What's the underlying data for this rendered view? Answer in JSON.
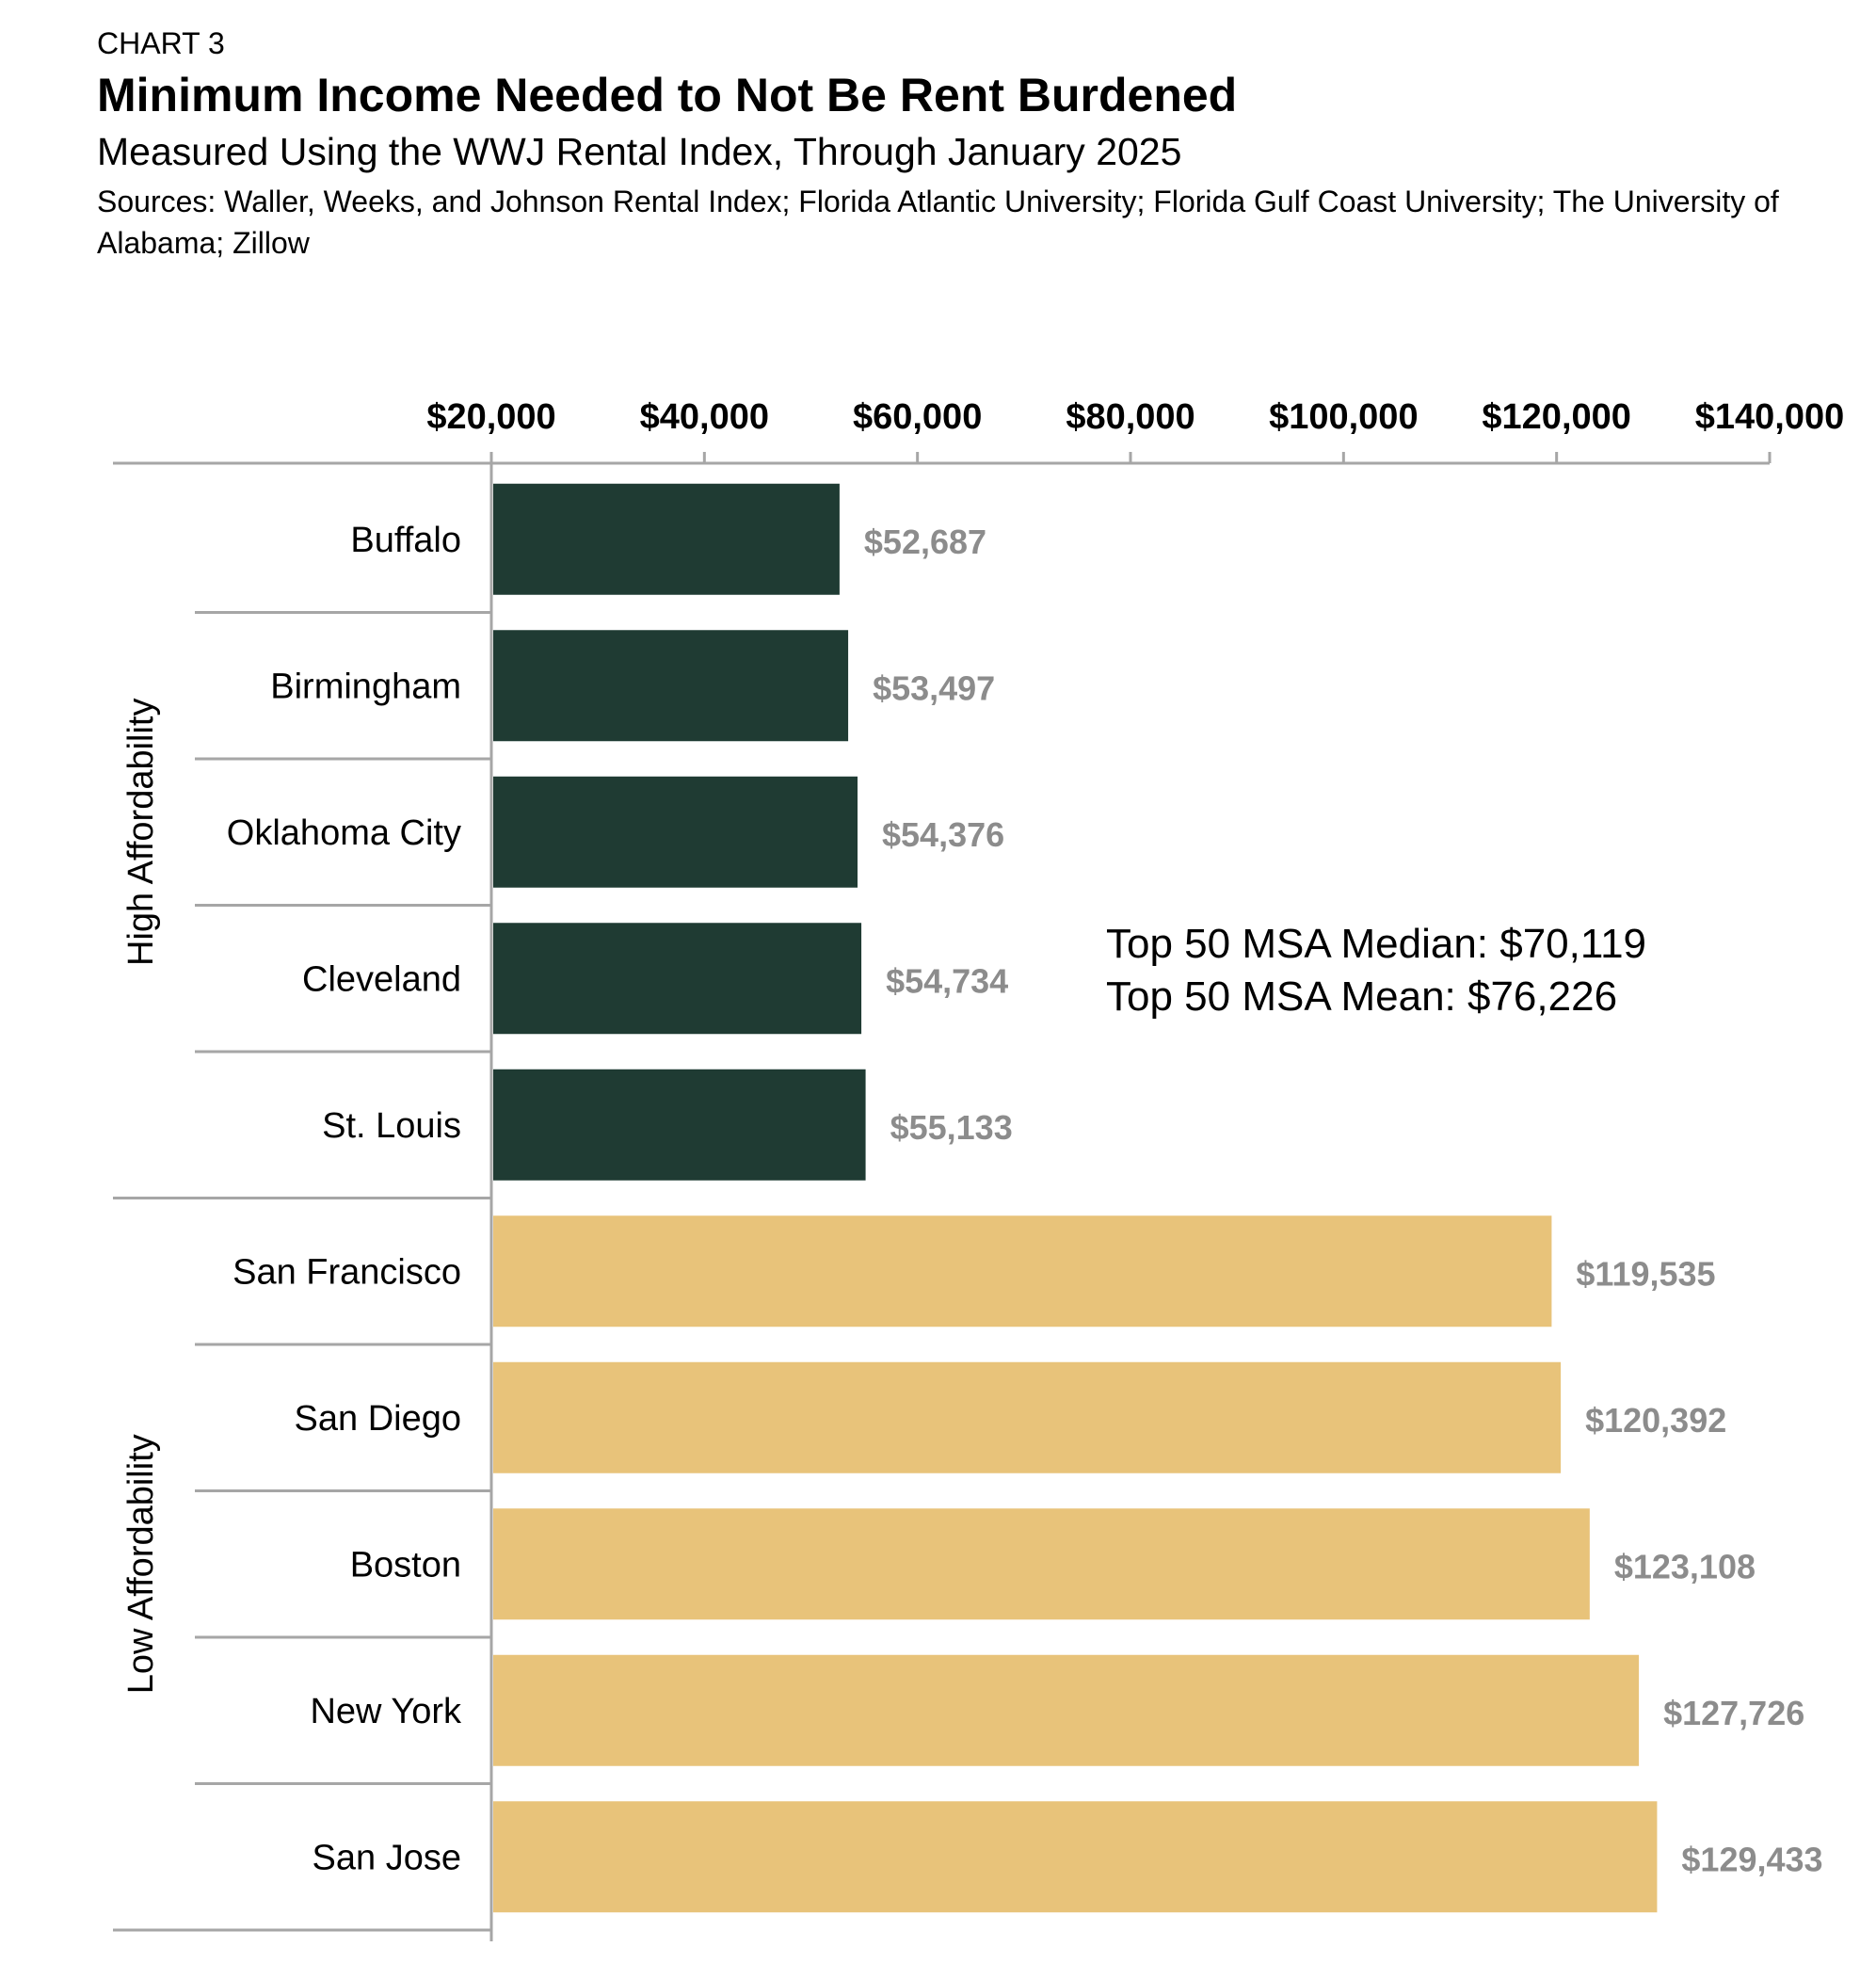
{
  "header": {
    "chart_label": "CHART 3",
    "title": "Minimum Income Needed to Not Be Rent Burdened",
    "subtitle": "Measured Using the WWJ Rental Index, Through January 2025",
    "sources": "Sources: Waller, Weeks, and Johnson Rental Index; Florida Atlantic University; Florida Gulf Coast University; The University of Alabama; Zillow"
  },
  "annotations": {
    "median": "Top 50 MSA Median: $70,119",
    "mean": "Top 50 MSA Mean: $76,226"
  },
  "colors": {
    "high_affordability": "#1f3b33",
    "low_affordability": "#e8c37a",
    "axis": "#a6a6a6",
    "value_label": "#8c8c8c"
  },
  "chart_data": {
    "type": "bar",
    "orientation": "horizontal",
    "xlim": [
      20000,
      140000
    ],
    "x_ticks": [
      20000,
      40000,
      60000,
      80000,
      100000,
      120000,
      140000
    ],
    "x_tick_labels": [
      "$20,000",
      "$40,000",
      "$60,000",
      "$80,000",
      "$100,000",
      "$120,000",
      "$140,000"
    ],
    "x_axis_position": "top",
    "grid": false,
    "groups": [
      {
        "name": "High Affordability",
        "color": "#1f3b33",
        "categories": [
          "Buffalo",
          "Birmingham",
          "Oklahoma City",
          "Cleveland",
          "St. Louis"
        ],
        "values": [
          52687,
          53497,
          54376,
          54734,
          55133
        ],
        "value_labels": [
          "$52,687",
          "$53,497",
          "$54,376",
          "$54,734",
          "$55,133"
        ]
      },
      {
        "name": "Low Affordability",
        "color": "#e8c37a",
        "categories": [
          "San Francisco",
          "San Diego",
          "Boston",
          "New York",
          "San Jose"
        ],
        "values": [
          119535,
          120392,
          123108,
          127726,
          129433
        ],
        "value_labels": [
          "$119,535",
          "$120,392",
          "$123,108",
          "$127,726",
          "$129,433"
        ]
      }
    ]
  }
}
